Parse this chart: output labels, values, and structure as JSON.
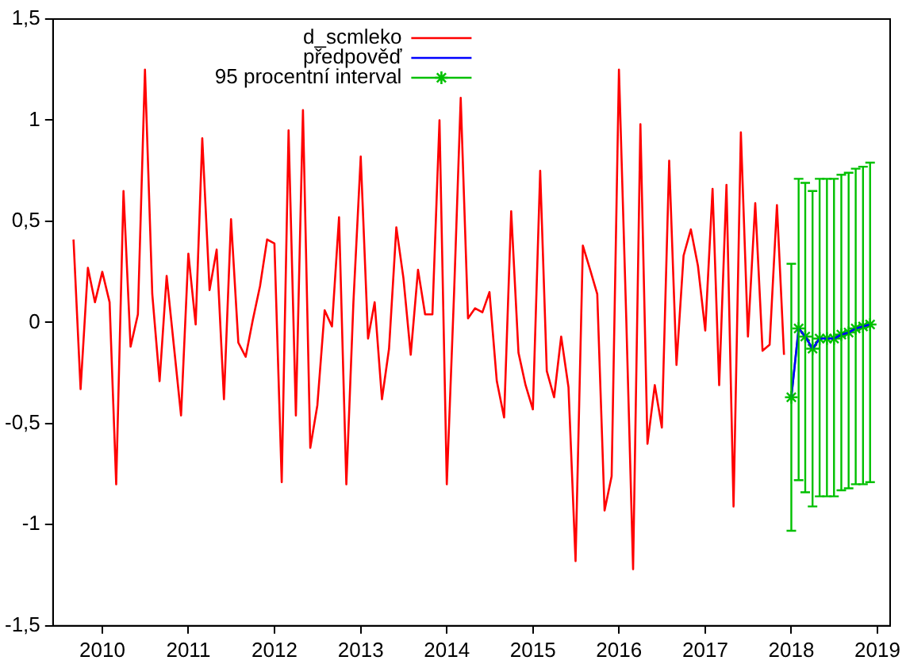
{
  "chart_data": {
    "type": "line",
    "legend": "top",
    "grid": false,
    "xlim": [
      "2009-06-06",
      "2019-02-24"
    ],
    "xticks": [
      "2010",
      "2011",
      "2012",
      "2013",
      "2014",
      "2015",
      "2016",
      "2017",
      "2018",
      "2019"
    ],
    "ylim": [
      -1.5,
      1.5
    ],
    "yticks": [
      {
        "value": -1.5,
        "label": "-1,5"
      },
      {
        "value": -1,
        "label": "-1"
      },
      {
        "value": -0.5,
        "label": "-0,5"
      },
      {
        "value": 0,
        "label": "0"
      },
      {
        "value": 0.5,
        "label": "0,5"
      },
      {
        "value": 1,
        "label": "1"
      },
      {
        "value": 1.5,
        "label": "1,5"
      }
    ],
    "series": [
      {
        "name": "d_scmleko",
        "color": "#ff0000",
        "x": [
          "2009-09",
          "2009-10",
          "2009-11",
          "2009-12",
          "2010-01",
          "2010-02",
          "2010-03",
          "2010-04",
          "2010-05",
          "2010-06",
          "2010-07",
          "2010-08",
          "2010-09",
          "2010-10",
          "2010-11",
          "2010-12",
          "2011-01",
          "2011-02",
          "2011-03",
          "2011-04",
          "2011-05",
          "2011-06",
          "2011-07",
          "2011-08",
          "2011-09",
          "2011-10",
          "2011-11",
          "2011-12",
          "2012-01",
          "2012-02",
          "2012-03",
          "2012-04",
          "2012-05",
          "2012-06",
          "2012-07",
          "2012-08",
          "2012-09",
          "2012-10",
          "2012-11",
          "2012-12",
          "2013-01",
          "2013-02",
          "2013-03",
          "2013-04",
          "2013-05",
          "2013-06",
          "2013-07",
          "2013-08",
          "2013-09",
          "2013-10",
          "2013-11",
          "2013-12",
          "2014-01",
          "2014-02",
          "2014-03",
          "2014-04",
          "2014-05",
          "2014-06",
          "2014-07",
          "2014-08",
          "2014-09",
          "2014-10",
          "2014-11",
          "2014-12",
          "2015-01",
          "2015-02",
          "2015-03",
          "2015-04",
          "2015-05",
          "2015-06",
          "2015-07",
          "2015-08",
          "2015-09",
          "2015-10",
          "2015-11",
          "2015-12",
          "2016-01",
          "2016-02",
          "2016-03",
          "2016-04",
          "2016-05",
          "2016-06",
          "2016-07",
          "2016-08",
          "2016-09",
          "2016-10",
          "2016-11",
          "2016-12",
          "2017-01",
          "2017-02",
          "2017-03",
          "2017-04",
          "2017-05",
          "2017-06",
          "2017-07",
          "2017-08",
          "2017-09",
          "2017-10",
          "2017-11",
          "2017-12"
        ],
        "values": [
          0.41,
          -0.33,
          0.27,
          0.1,
          0.25,
          0.1,
          -0.8,
          0.65,
          -0.12,
          0.04,
          1.25,
          0.14,
          -0.29,
          0.23,
          -0.12,
          -0.46,
          0.34,
          -0.01,
          0.91,
          0.16,
          0.36,
          -0.38,
          0.51,
          -0.1,
          -0.17,
          0.01,
          0.18,
          0.41,
          0.39,
          -0.79,
          0.95,
          -0.46,
          1.05,
          -0.62,
          -0.41,
          0.06,
          -0.02,
          0.52,
          -0.8,
          0.1,
          0.82,
          -0.08,
          0.1,
          -0.38,
          -0.13,
          0.47,
          0.22,
          -0.16,
          0.26,
          0.04,
          0.04,
          1.0,
          -0.8,
          0.15,
          1.11,
          0.02,
          0.07,
          0.05,
          0.15,
          -0.29,
          -0.47,
          0.55,
          -0.15,
          -0.31,
          -0.43,
          0.75,
          -0.24,
          -0.37,
          -0.07,
          -0.32,
          -1.18,
          0.38,
          0.26,
          0.14,
          -0.93,
          -0.76,
          1.25,
          0.02,
          -1.22,
          0.98,
          -0.6,
          -0.31,
          -0.52,
          0.8,
          -0.21,
          0.33,
          0.46,
          0.28,
          -0.04,
          0.66,
          -0.31,
          0.68,
          -0.91,
          0.94,
          -0.07,
          0.59,
          -0.14,
          -0.11,
          0.58,
          -0.16
        ]
      },
      {
        "name": "předpověď",
        "color": "#0000ff",
        "x": [
          "2018-01",
          "2018-02",
          "2018-03",
          "2018-04",
          "2018-05",
          "2018-06",
          "2018-07",
          "2018-08",
          "2018-09",
          "2018-10",
          "2018-11",
          "2018-12"
        ],
        "values": [
          -0.37,
          -0.03,
          -0.07,
          -0.13,
          -0.08,
          -0.08,
          -0.08,
          -0.06,
          -0.05,
          -0.03,
          -0.02,
          -0.01
        ]
      },
      {
        "name": "95 procentní interval",
        "color": "#00c000",
        "marker": "cross",
        "x": [
          "2018-01",
          "2018-02",
          "2018-03",
          "2018-04",
          "2018-05",
          "2018-06",
          "2018-07",
          "2018-08",
          "2018-09",
          "2018-10",
          "2018-11",
          "2018-12"
        ],
        "values": [
          -0.37,
          -0.03,
          -0.07,
          -0.13,
          -0.08,
          -0.08,
          -0.08,
          -0.06,
          -0.05,
          -0.03,
          -0.02,
          -0.01
        ],
        "errors": [
          [
            -1.03,
            0.29
          ],
          [
            -0.78,
            0.71
          ],
          [
            -0.84,
            0.69
          ],
          [
            -0.91,
            0.65
          ],
          [
            -0.86,
            0.71
          ],
          [
            -0.86,
            0.71
          ],
          [
            -0.86,
            0.71
          ],
          [
            -0.83,
            0.73
          ],
          [
            -0.82,
            0.74
          ],
          [
            -0.8,
            0.76
          ],
          [
            -0.8,
            0.77
          ],
          [
            -0.79,
            0.79
          ]
        ]
      }
    ]
  }
}
